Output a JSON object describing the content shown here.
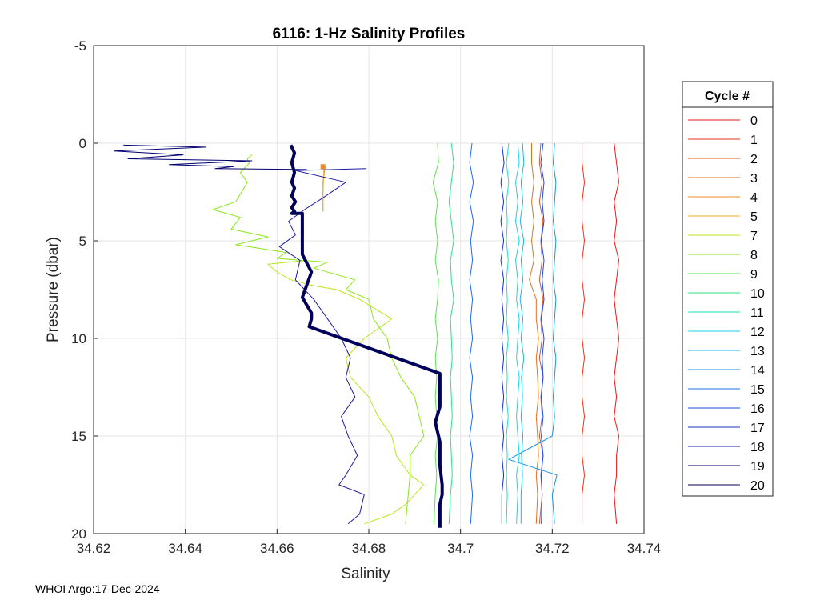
{
  "footer": "WHOI Argo:17-Dec-2024",
  "chart_data": {
    "type": "line",
    "title": "6116: 1-Hz Salinity Profiles",
    "xlabel": "Salinity",
    "ylabel": "Pressure (dbar)",
    "xlim": [
      34.62,
      34.74
    ],
    "ylim": [
      -5,
      20
    ],
    "y_reversed": true,
    "grid": true,
    "xticks": [
      "34.62",
      "34.64",
      "34.66",
      "34.68",
      "34.7",
      "34.72",
      "34.74"
    ],
    "yticks": [
      "-5",
      "0",
      "5",
      "10",
      "15",
      "20"
    ],
    "legend": {
      "title": "Cycle #",
      "position": "right-outside"
    },
    "series": [
      {
        "name": "0",
        "color": "#e31a1c",
        "x": [
          34.7335,
          34.734,
          34.7345,
          34.7335,
          34.734,
          34.7335,
          34.7345,
          34.734,
          34.7335,
          34.734,
          34.7345,
          34.734,
          34.7335,
          34.734,
          34.7335,
          34.7345,
          34.734,
          34.734,
          34.7335,
          34.734
        ],
        "y": [
          0,
          1,
          2,
          3,
          4,
          5,
          6,
          7,
          8,
          9,
          10,
          11,
          12,
          13,
          14,
          15,
          16,
          17,
          18,
          19.5
        ]
      },
      {
        "name": "1",
        "color": "#e6331a",
        "x": [
          34.7265,
          34.7265,
          34.727,
          34.7265,
          34.7265,
          34.727,
          34.7265,
          34.7265,
          34.727,
          34.7265,
          34.7265,
          34.727,
          34.7265,
          34.7265,
          34.727,
          34.7265,
          34.7265,
          34.727,
          34.7265,
          34.7265
        ],
        "y": [
          0,
          1,
          2,
          3,
          4,
          5,
          6,
          7,
          8,
          9,
          10,
          11,
          12,
          13,
          14,
          15,
          16,
          17,
          18,
          19.5
        ]
      },
      {
        "name": "2",
        "color": "#e6521a",
        "x": [
          34.7175,
          34.7172,
          34.7178,
          34.7172,
          34.718,
          34.7175,
          34.7178,
          34.7172,
          34.718,
          34.7175,
          34.7178,
          34.7172,
          34.718,
          34.7175,
          34.7178,
          34.7172,
          34.718,
          34.7175,
          34.7178,
          34.7172
        ],
        "y": [
          0,
          1,
          2,
          3,
          4,
          5,
          6,
          7,
          8,
          9,
          10,
          11,
          12,
          13,
          14,
          15,
          16,
          17,
          18,
          19.5
        ]
      },
      {
        "name": "3",
        "color": "#e6701a",
        "x": [
          34.7155,
          34.7155,
          34.716,
          34.7155,
          34.716,
          34.7155,
          34.716,
          34.715,
          34.7165,
          34.7165,
          34.717,
          34.7165,
          34.7168,
          34.717,
          34.7165,
          34.7168,
          34.717,
          34.7165,
          34.7168,
          34.7165
        ],
        "y": [
          0,
          1,
          2,
          3,
          4,
          5,
          6,
          7,
          8,
          9,
          10,
          11,
          12,
          13,
          14,
          15,
          16,
          17,
          18,
          19.5
        ]
      },
      {
        "name": "4",
        "color": "#f08c28",
        "x": [
          34.67,
          34.6705,
          34.67,
          34.67
        ],
        "y": [
          1.2,
          1.2,
          2,
          3.5
        ]
      },
      {
        "name": "5",
        "color": "#f0aa28",
        "x": [
          34.67,
          34.6702,
          34.67,
          34.67
        ],
        "y": [
          1.2,
          1.4,
          2.5,
          3.5
        ]
      },
      {
        "name": "7",
        "color": "#b9e61a",
        "x": [
          34.6665,
          34.658,
          34.66,
          34.663,
          34.668,
          34.673,
          34.678,
          34.685,
          34.679,
          34.675,
          34.676,
          34.68,
          34.682,
          34.685,
          34.686,
          34.689,
          34.692,
          34.69,
          34.688,
          34.685,
          34.679
        ],
        "y": [
          6,
          6.2,
          6.6,
          7,
          7.3,
          7.5,
          8,
          9,
          10,
          11,
          12,
          13,
          14,
          15,
          16,
          17,
          17.5,
          18,
          18.5,
          19,
          19.5
        ]
      },
      {
        "name": "8",
        "color": "#8ce61a",
        "x": [
          34.6545,
          34.6535,
          34.654,
          34.652,
          34.6535,
          34.651,
          34.646,
          34.652,
          34.65,
          34.658,
          34.651,
          34.662,
          34.66,
          34.671,
          34.668,
          34.677,
          34.675,
          34.68,
          34.681,
          34.684,
          34.685,
          34.687,
          34.69,
          34.691,
          34.692,
          34.689,
          34.689,
          34.688
        ],
        "y": [
          0.6,
          0.8,
          1,
          1.5,
          2,
          3,
          3.4,
          3.8,
          4.4,
          4.8,
          5.2,
          5.6,
          5.9,
          6.1,
          6.4,
          7,
          7.5,
          8,
          9,
          10,
          11,
          12,
          13,
          14,
          15,
          16,
          17,
          19.5
        ]
      },
      {
        "name": "9",
        "color": "#55e64b",
        "x": [
          34.695,
          34.6952,
          34.694,
          34.695,
          34.6945,
          34.695,
          34.6945,
          34.6952,
          34.695,
          34.6945,
          34.695,
          34.6945,
          34.6948,
          34.6945,
          34.6948,
          34.695,
          34.6945,
          34.6948,
          34.6945,
          34.6942
        ],
        "y": [
          0,
          1,
          2,
          3,
          4,
          5,
          6,
          7,
          8,
          9,
          10,
          11,
          12,
          13,
          14,
          15,
          16,
          17,
          18,
          19.5
        ]
      },
      {
        "name": "10",
        "color": "#28e67d",
        "x": [
          34.698,
          34.6985,
          34.698,
          34.6975,
          34.698,
          34.6985,
          34.6978,
          34.698,
          34.6985,
          34.6978,
          34.698,
          34.6982,
          34.6978,
          34.698,
          34.6982,
          34.6978,
          34.698,
          34.6982,
          34.6978,
          34.6975
        ],
        "y": [
          0,
          1,
          2,
          3,
          4,
          5,
          6,
          7,
          8,
          9,
          10,
          11,
          12,
          13,
          14,
          15,
          16,
          17,
          18,
          19.5
        ]
      },
      {
        "name": "11",
        "color": "#1ae6b9",
        "x": [
          34.7105,
          34.71,
          34.7105,
          34.71,
          34.7102,
          34.71,
          34.7104,
          34.71,
          34.7102,
          34.71,
          34.7104,
          34.71,
          34.7102,
          34.71,
          34.7104,
          34.71,
          34.7102,
          34.71,
          34.7102,
          34.71
        ],
        "y": [
          0,
          1,
          2,
          3,
          4,
          5,
          6,
          7,
          8,
          9,
          10,
          11,
          12,
          13,
          14,
          15,
          16,
          17,
          18,
          19.5
        ]
      },
      {
        "name": "12",
        "color": "#1ad2e6",
        "x": [
          34.7125,
          34.7128,
          34.712,
          34.7125,
          34.712,
          34.7128,
          34.712,
          34.7125,
          34.7122,
          34.7128,
          34.7125,
          34.7122,
          34.7128,
          34.7125,
          34.7122,
          34.7125,
          34.7128,
          34.7122,
          34.7125,
          34.7122
        ],
        "y": [
          0,
          1,
          2,
          3,
          4,
          5,
          6,
          7,
          8,
          9,
          10,
          11,
          12,
          13,
          14,
          15,
          16,
          17,
          18,
          19.5
        ]
      },
      {
        "name": "13",
        "color": "#1ab4e6",
        "x": [
          34.7135,
          34.7138,
          34.7132,
          34.7136,
          34.713,
          34.7138,
          34.7132,
          34.7136,
          34.713,
          34.7136,
          34.7132,
          34.7138,
          34.7133,
          34.7135,
          34.7132,
          34.7136,
          34.7133,
          34.7135,
          34.7132,
          34.7132
        ],
        "y": [
          0,
          1,
          2,
          3,
          4,
          5,
          6,
          7,
          8,
          9,
          10,
          11,
          12,
          13,
          14,
          15,
          16,
          17,
          18,
          19.5
        ]
      },
      {
        "name": "14",
        "color": "#1a91e6",
        "x": [
          34.7205,
          34.7202,
          34.7208,
          34.7205,
          34.7202,
          34.7208,
          34.7205,
          34.7202,
          34.7208,
          34.7205,
          34.7202,
          34.7208,
          34.7205,
          34.7202,
          34.7205,
          34.72,
          34.7105,
          34.721,
          34.72,
          34.7205
        ],
        "y": [
          0,
          1,
          2,
          3,
          4,
          5,
          6,
          7,
          8,
          9,
          10,
          11,
          12,
          13,
          14,
          15,
          16.2,
          17,
          18,
          19.5
        ]
      },
      {
        "name": "15",
        "color": "#1a6fe6",
        "x": [
          34.7025,
          34.702,
          34.7028,
          34.702,
          34.7028,
          34.7022,
          34.7026,
          34.702,
          34.7026,
          34.7022,
          34.7026,
          34.702,
          34.7026,
          34.7022,
          34.7026,
          34.702,
          34.7026,
          34.7022,
          34.7026,
          34.7022
        ],
        "y": [
          0,
          1,
          2,
          3,
          4,
          5,
          6,
          7,
          8,
          9,
          10,
          11,
          12,
          13,
          14,
          15,
          16,
          17,
          18,
          19.5
        ]
      },
      {
        "name": "16",
        "color": "#1a4be6",
        "x": [
          34.718,
          34.7175,
          34.7182,
          34.7178,
          34.7182,
          34.7176,
          34.7182,
          34.7178,
          34.7182,
          34.7176,
          34.7182,
          34.7178,
          34.718,
          34.7176,
          34.718,
          34.7176,
          34.718,
          34.7176,
          34.7178,
          34.7176
        ],
        "y": [
          0,
          1,
          2,
          3,
          4,
          5,
          6,
          7,
          8,
          9,
          10,
          11,
          12,
          13,
          14,
          15,
          16,
          17,
          18,
          19.5
        ]
      },
      {
        "name": "17",
        "color": "#1a30c8",
        "x": [
          34.709,
          34.7095,
          34.7088,
          34.7094,
          34.7088,
          34.7094,
          34.7088,
          34.7094,
          34.709,
          34.7094,
          34.709,
          34.7094,
          34.709,
          34.7094,
          34.709,
          34.7094,
          34.709,
          34.7094,
          34.709,
          34.709
        ],
        "y": [
          0,
          1,
          2,
          3,
          4,
          5,
          6,
          7,
          8,
          9,
          10,
          11,
          12,
          13,
          14,
          15,
          16,
          17,
          18,
          19.5
        ]
      },
      {
        "name": "18",
        "color": "#1a1aa0",
        "x": [
          34.6795,
          34.664,
          34.675,
          34.67,
          34.666,
          34.6625,
          34.664,
          34.6605,
          34.665,
          34.664,
          34.668,
          34.671,
          34.674,
          34.676,
          34.675,
          34.677,
          34.674,
          34.6755,
          34.6775,
          34.675,
          34.6735,
          34.679,
          34.678,
          34.6755
        ],
        "y": [
          1.3,
          1.4,
          2,
          2.8,
          3.4,
          4,
          4.7,
          5.3,
          6,
          7,
          8,
          9,
          10,
          11,
          12,
          13,
          14,
          15,
          16,
          17,
          17.5,
          18,
          19,
          19.5
        ]
      },
      {
        "name": "19",
        "color": "#00006e",
        "x": [
          34.6265,
          34.6445,
          34.6245,
          34.6395,
          34.6275,
          34.6545,
          34.6365,
          34.6505,
          34.6465,
          34.6665
        ],
        "y": [
          0.1,
          0.2,
          0.4,
          0.6,
          0.8,
          0.9,
          1.1,
          1.2,
          1.3,
          1.35
        ]
      },
      {
        "name": "20",
        "color": "#00005a",
        "bold": true,
        "x": [
          34.663,
          34.6638,
          34.6632,
          34.6638,
          34.6632,
          34.6638,
          34.6632,
          34.664,
          34.6632,
          34.6638,
          34.6632,
          34.6655,
          34.6655,
          34.6655,
          34.6655,
          34.6675,
          34.6655,
          34.6675,
          34.6675,
          34.667,
          34.6955,
          34.6955,
          34.6955,
          34.6945,
          34.6955,
          34.6955,
          34.696,
          34.696,
          34.6955,
          34.6955
        ],
        "y": [
          0.1,
          0.5,
          1,
          1.5,
          2,
          2.3,
          2.7,
          3,
          3.3,
          3.5,
          3.6,
          3.6,
          4.5,
          5,
          5.7,
          6.6,
          7.9,
          8.7,
          9,
          9.4,
          11.8,
          12.5,
          13.5,
          14.3,
          15.3,
          16.5,
          17.5,
          18,
          18.5,
          19.7
        ]
      }
    ]
  }
}
